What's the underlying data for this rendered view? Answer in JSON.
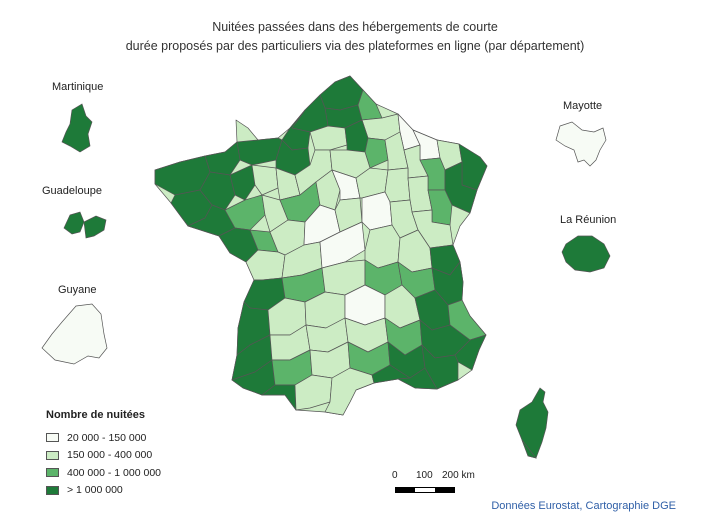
{
  "title_line1": "Nuitées passées dans des hébergements de courte",
  "title_line2": "durée proposés par des particuliers via des plateformes en ligne (par département)",
  "colors": {
    "class1": "#f7fbf5",
    "class2": "#ccecc4",
    "class3": "#5cb46a",
    "class4": "#1e7a39",
    "border": "#555555"
  },
  "overseas": {
    "martinique": "Martinique",
    "guadeloupe": "Guadeloupe",
    "guyane": "Guyane",
    "mayotte": "Mayotte",
    "reunion": "La Réunion"
  },
  "legend": {
    "title": "Nombre de nuitées",
    "items": [
      {
        "label": "20 000 - 150 000",
        "color": "#f7fbf5"
      },
      {
        "label": "150 000 - 400 000",
        "color": "#ccecc4"
      },
      {
        "label": "400 000 - 1 000 000",
        "color": "#5cb46a"
      },
      {
        "label": "> 1 000 000",
        "color": "#1e7a39"
      }
    ]
  },
  "scale": {
    "tick0": "0",
    "tick1": "100",
    "tick2": "200 km"
  },
  "source": "Données Eurostat, Cartographie DGE"
}
